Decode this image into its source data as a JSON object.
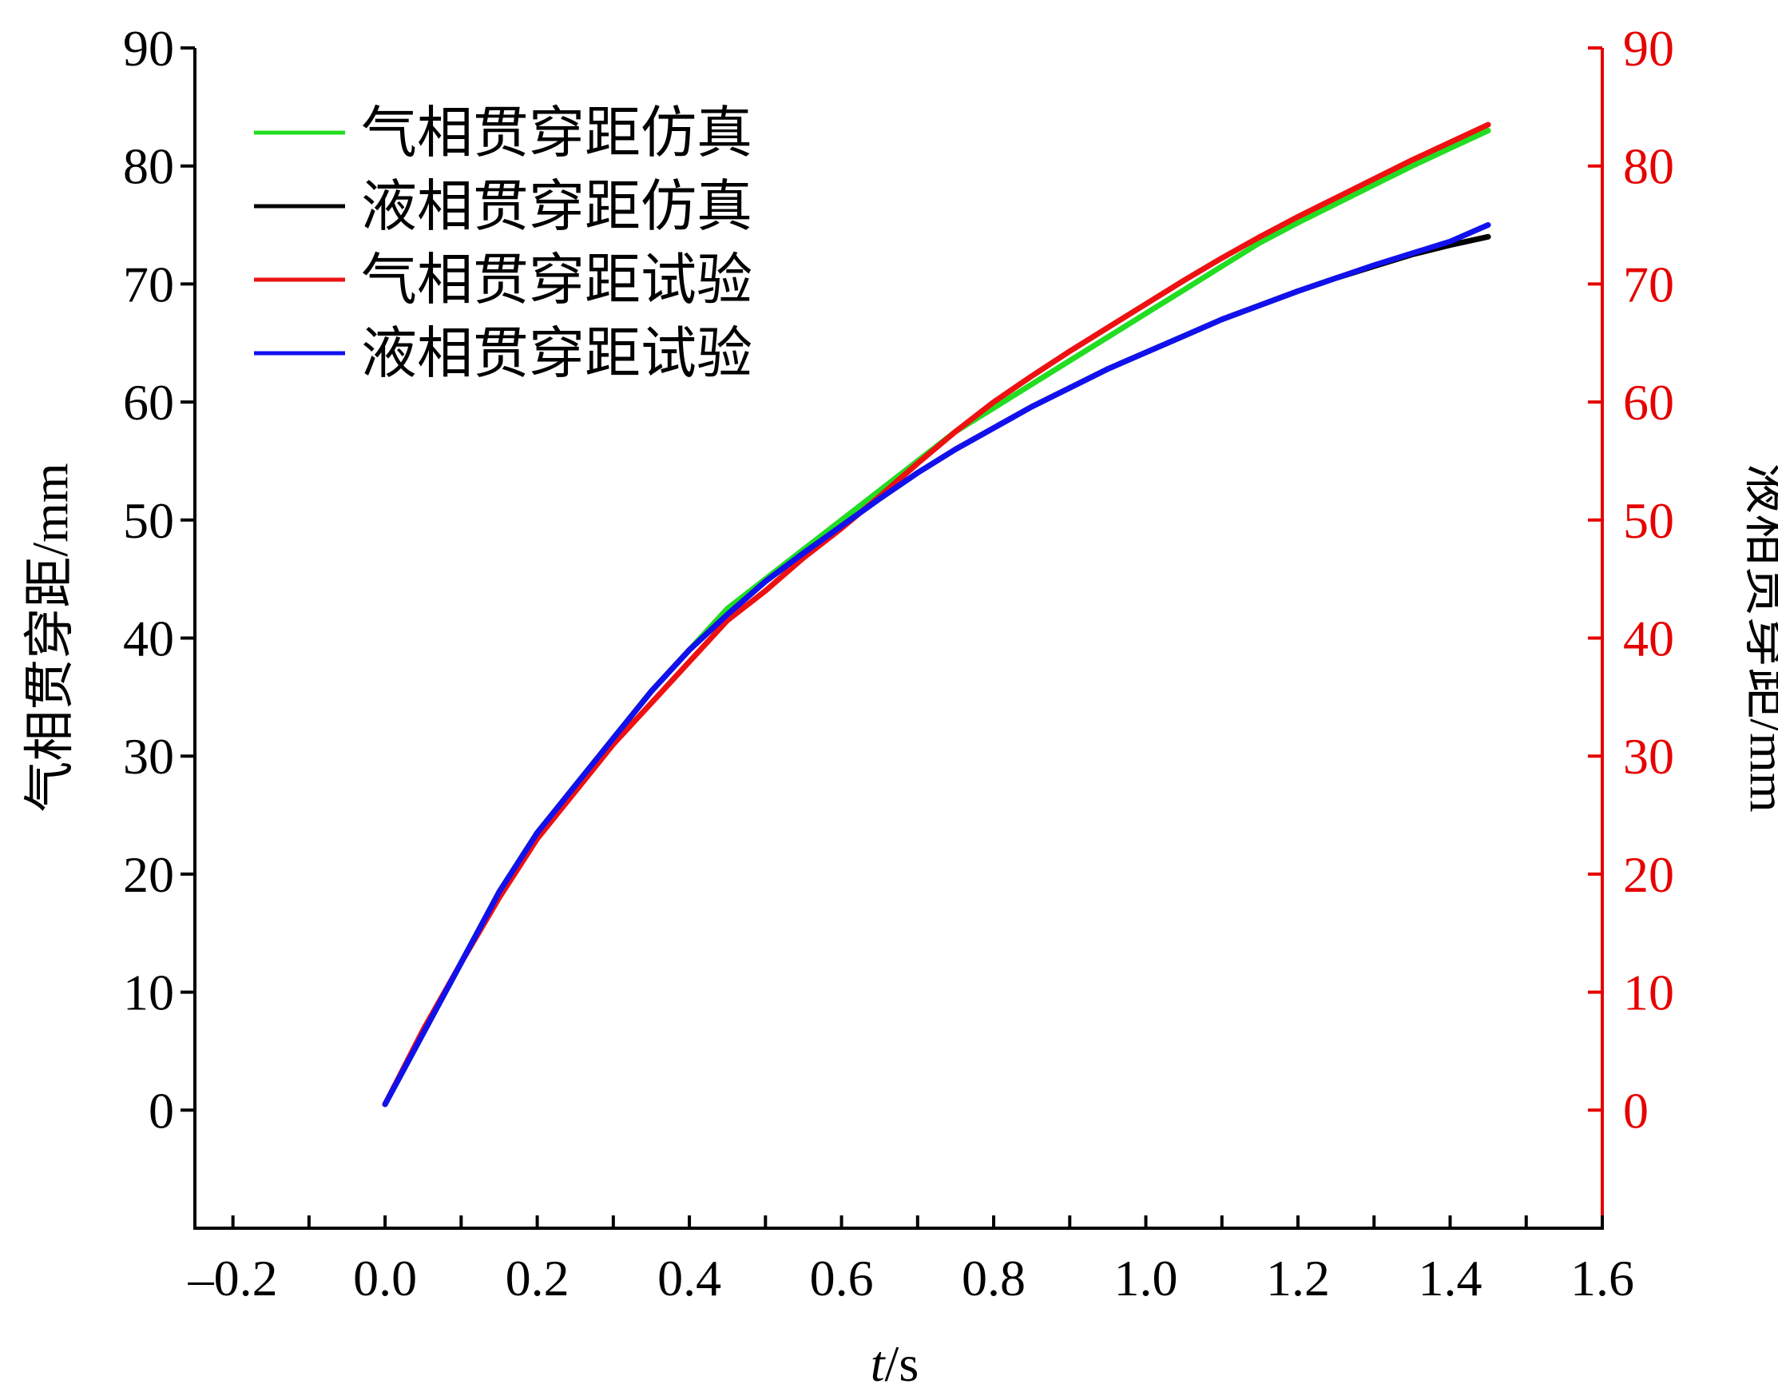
{
  "chart_data": {
    "type": "line",
    "x_axis": {
      "label_italic": "t",
      "label_rest": "/s",
      "range": [
        -0.25,
        1.6
      ],
      "ticks": [
        -0.2,
        0.0,
        0.2,
        0.4,
        0.6,
        0.8,
        1.0,
        1.2,
        1.4,
        1.6
      ],
      "tick_labels": [
        "–0.2",
        "0.0",
        "0.2",
        "0.4",
        "0.6",
        "0.8",
        "1.0",
        "1.2",
        "1.4",
        "1.6"
      ],
      "minor_step": 0.1
    },
    "y_axis_left": {
      "label": "气相贯穿距/mm",
      "range": [
        -10,
        90
      ],
      "ticks": [
        0,
        10,
        20,
        30,
        40,
        50,
        60,
        70,
        80,
        90
      ],
      "tick_labels": [
        "0",
        "10",
        "20",
        "30",
        "40",
        "50",
        "60",
        "70",
        "80",
        "90"
      ],
      "color": "#000000"
    },
    "y_axis_right": {
      "label": "液相贯穿距/mm",
      "range": [
        -10,
        90
      ],
      "ticks": [
        0,
        10,
        20,
        30,
        40,
        50,
        60,
        70,
        80,
        90
      ],
      "tick_labels": [
        "0",
        "10",
        "20",
        "30",
        "40",
        "50",
        "60",
        "70",
        "80",
        "90"
      ],
      "color": "#e60000"
    },
    "legend_position": "top-left",
    "series": [
      {
        "name": "气相贯穿距仿真",
        "color": "#22dd22",
        "x": [
          0.0,
          0.05,
          0.1,
          0.15,
          0.2,
          0.25,
          0.3,
          0.35,
          0.4,
          0.45,
          0.5,
          0.55,
          0.6,
          0.65,
          0.7,
          0.75,
          0.8,
          0.85,
          0.9,
          0.95,
          1.0,
          1.05,
          1.1,
          1.15,
          1.2,
          1.25,
          1.3,
          1.35,
          1.4,
          1.45
        ],
        "y": [
          0.5,
          6.5,
          12.5,
          18.5,
          23.5,
          27.5,
          31.5,
          35.5,
          39.0,
          42.5,
          45.0,
          47.5,
          50.0,
          52.5,
          55.0,
          57.5,
          59.5,
          61.5,
          63.5,
          65.5,
          67.5,
          69.5,
          71.5,
          73.5,
          75.2,
          76.8,
          78.4,
          80.0,
          81.5,
          83.0
        ]
      },
      {
        "name": "液相贯穿距仿真",
        "color": "#000000",
        "x": [
          0.0,
          0.05,
          0.1,
          0.15,
          0.2,
          0.25,
          0.3,
          0.35,
          0.4,
          0.45,
          0.5,
          0.55,
          0.6,
          0.65,
          0.7,
          0.75,
          0.8,
          0.85,
          0.9,
          0.95,
          1.0,
          1.05,
          1.1,
          1.15,
          1.2,
          1.25,
          1.3,
          1.35,
          1.4,
          1.45
        ],
        "y": [
          0.5,
          6.5,
          12.5,
          18.5,
          23.5,
          27.5,
          31.5,
          35.5,
          39.0,
          42.0,
          44.8,
          47.2,
          49.5,
          51.8,
          54.0,
          56.0,
          57.8,
          59.6,
          61.2,
          62.8,
          64.2,
          65.6,
          67.0,
          68.2,
          69.4,
          70.5,
          71.5,
          72.5,
          73.3,
          74.0
        ]
      },
      {
        "name": "气相贯穿距试验",
        "color": "#ee1111",
        "x": [
          0.0,
          0.05,
          0.1,
          0.15,
          0.2,
          0.25,
          0.3,
          0.35,
          0.4,
          0.45,
          0.5,
          0.55,
          0.6,
          0.65,
          0.7,
          0.75,
          0.8,
          0.85,
          0.9,
          0.95,
          1.0,
          1.05,
          1.1,
          1.15,
          1.2,
          1.25,
          1.3,
          1.35,
          1.4,
          1.45
        ],
        "y": [
          0.5,
          6.8,
          12.5,
          18.0,
          23.0,
          27.0,
          31.0,
          34.5,
          38.0,
          41.5,
          44.0,
          46.8,
          49.3,
          52.0,
          54.8,
          57.5,
          60.0,
          62.2,
          64.3,
          66.3,
          68.3,
          70.3,
          72.2,
          74.0,
          75.7,
          77.3,
          78.9,
          80.5,
          82.0,
          83.5
        ]
      },
      {
        "name": "液相贯穿距试验",
        "color": "#1111ee",
        "x": [
          0.0,
          0.05,
          0.1,
          0.15,
          0.2,
          0.25,
          0.3,
          0.35,
          0.4,
          0.45,
          0.5,
          0.55,
          0.6,
          0.65,
          0.7,
          0.75,
          0.8,
          0.85,
          0.9,
          0.95,
          1.0,
          1.05,
          1.1,
          1.15,
          1.2,
          1.25,
          1.3,
          1.35,
          1.4,
          1.45
        ],
        "y": [
          0.5,
          6.5,
          12.5,
          18.5,
          23.5,
          27.5,
          31.5,
          35.5,
          39.0,
          42.0,
          44.8,
          47.2,
          49.5,
          51.8,
          54.0,
          56.0,
          57.8,
          59.6,
          61.2,
          62.8,
          64.2,
          65.6,
          67.0,
          68.2,
          69.4,
          70.5,
          71.6,
          72.6,
          73.6,
          75.0
        ]
      }
    ]
  }
}
